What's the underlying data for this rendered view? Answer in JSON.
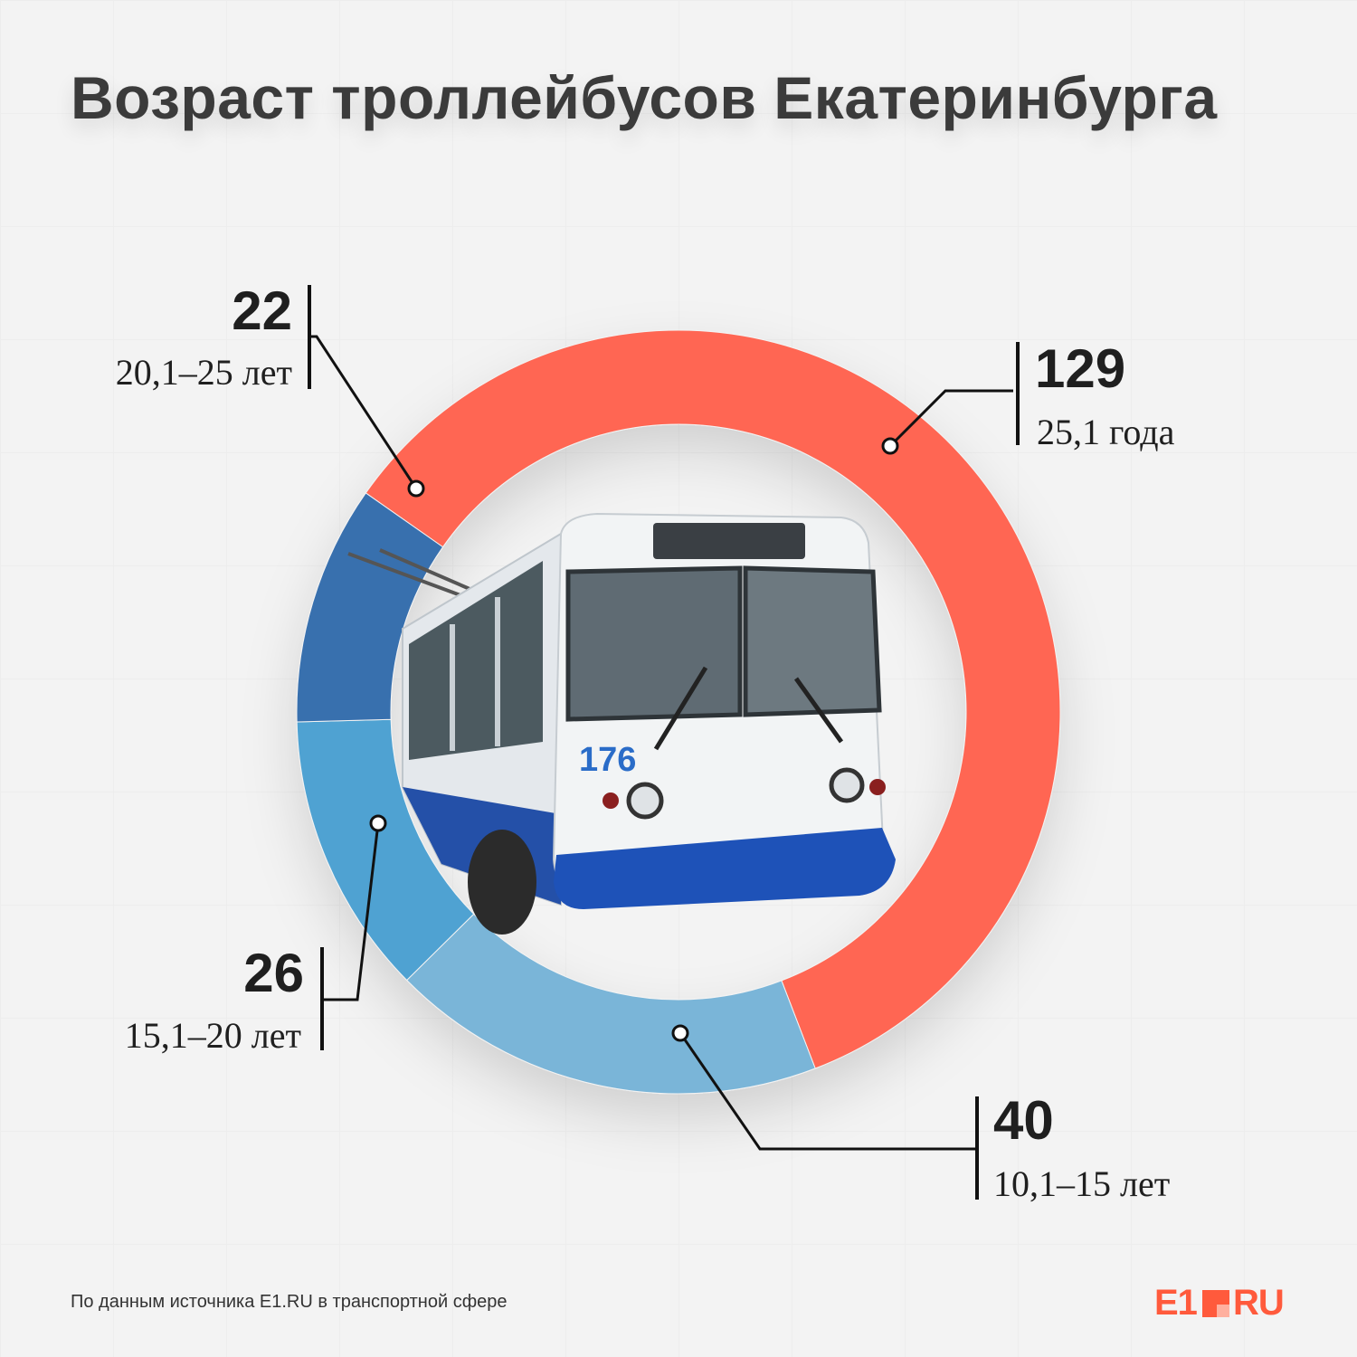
{
  "title": "Возраст троллейбусов Екатеринбурга",
  "colors": {
    "coral": "#ff6652",
    "dark_blue": "#386fae",
    "mid_blue": "#4fa2d2",
    "light_blue": "#7ab5d8"
  },
  "chart_data": {
    "type": "pie",
    "subtype": "donut",
    "center_image": "trolleybus-photo",
    "slices": [
      {
        "value": 129,
        "label": "25,1 года",
        "color": "#ff6652"
      },
      {
        "value": 40,
        "label": "10,1–15 лет",
        "color": "#7ab5d8"
      },
      {
        "value": 26,
        "label": "15,1–20 лет",
        "color": "#4fa2d2"
      },
      {
        "value": 22,
        "label": "20,1–25 лет",
        "color": "#386fae"
      }
    ]
  },
  "labels": {
    "s129": {
      "value": "129",
      "range": "25,1 года"
    },
    "s40": {
      "value": "40",
      "range": "10,1–15 лет"
    },
    "s26": {
      "value": "26",
      "range": "15,1–20 лет"
    },
    "s22": {
      "value": "22",
      "range": "20,1–25 лет"
    }
  },
  "footer": {
    "source": "По данным источника E1.RU в транспортной сфере"
  },
  "logo": {
    "left": "E1",
    "right": "RU"
  }
}
